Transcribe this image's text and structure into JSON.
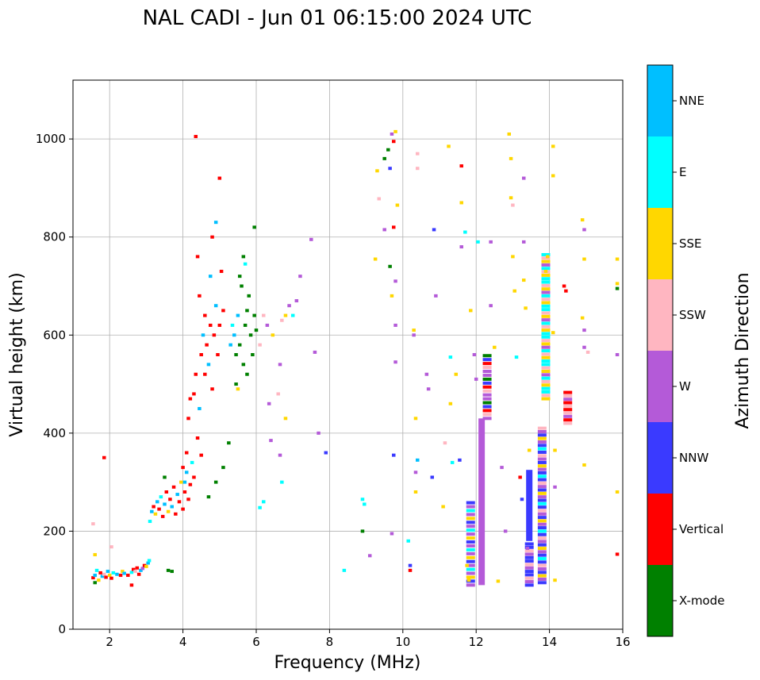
{
  "chart_data": {
    "type": "scatter",
    "title": "NAL CADI - Jun 01 06:15:00 2024 UTC",
    "xlabel": "Frequency (MHz)",
    "ylabel": "Virtual height (km)",
    "xlim": [
      1.0,
      16.0
    ],
    "ylim": [
      0,
      1120
    ],
    "xticks": [
      2,
      4,
      6,
      8,
      10,
      12,
      14,
      16
    ],
    "yticks": [
      0,
      200,
      400,
      600,
      800,
      1000
    ],
    "grid": true,
    "colorbar": {
      "label": "Azimuth Direction",
      "categories": [
        {
          "name": "X-mode",
          "color": "#008000"
        },
        {
          "name": "Vertical",
          "color": "#ff0000"
        },
        {
          "name": "NNW",
          "color": "#3a3aff"
        },
        {
          "name": "W",
          "color": "#b45ad8"
        },
        {
          "name": "SSW",
          "color": "#ffb6c1"
        },
        {
          "name": "SSE",
          "color": "#ffd700"
        },
        {
          "name": "E",
          "color": "#00ffff"
        },
        {
          "name": "NNE",
          "color": "#00bfff"
        }
      ]
    },
    "points": [
      [
        1.55,
        105,
        "Vertical"
      ],
      [
        1.6,
        110,
        "NNE"
      ],
      [
        1.6,
        95,
        "X-mode"
      ],
      [
        1.65,
        120,
        "E"
      ],
      [
        1.7,
        100,
        "SSE"
      ],
      [
        1.75,
        115,
        "Vertical"
      ],
      [
        1.8,
        108,
        "NNE"
      ],
      [
        1.85,
        112,
        "SSW"
      ],
      [
        1.9,
        106,
        "Vertical"
      ],
      [
        1.95,
        118,
        "NNE"
      ],
      [
        2.0,
        110,
        "SSE"
      ],
      [
        2.05,
        104,
        "Vertical"
      ],
      [
        2.1,
        115,
        "E"
      ],
      [
        2.2,
        112,
        "NNE"
      ],
      [
        2.3,
        110,
        "Vertical"
      ],
      [
        2.35,
        118,
        "SSE"
      ],
      [
        2.4,
        114,
        "NNE"
      ],
      [
        2.5,
        110,
        "Vertical"
      ],
      [
        2.6,
        116,
        "E"
      ],
      [
        2.65,
        122,
        "Vertical"
      ],
      [
        2.7,
        118,
        "SSW"
      ],
      [
        2.75,
        125,
        "Vertical"
      ],
      [
        2.8,
        112,
        "Vertical"
      ],
      [
        2.85,
        120,
        "NNE"
      ],
      [
        2.9,
        124,
        "W"
      ],
      [
        2.95,
        130,
        "Vertical"
      ],
      [
        3.0,
        128,
        "SSE"
      ],
      [
        3.05,
        135,
        "NNE"
      ],
      [
        3.08,
        140,
        "E"
      ],
      [
        1.55,
        215,
        "SSW"
      ],
      [
        1.6,
        152,
        "SSE"
      ],
      [
        1.85,
        350,
        "Vertical"
      ],
      [
        2.05,
        168,
        "SSW"
      ],
      [
        2.6,
        90,
        "Vertical"
      ],
      [
        3.1,
        220,
        "E"
      ],
      [
        3.15,
        240,
        "NNE"
      ],
      [
        3.2,
        250,
        "Vertical"
      ],
      [
        3.25,
        235,
        "SSE"
      ],
      [
        3.3,
        260,
        "NNE"
      ],
      [
        3.35,
        245,
        "Vertical"
      ],
      [
        3.4,
        270,
        "E"
      ],
      [
        3.45,
        230,
        "Vertical"
      ],
      [
        3.5,
        255,
        "NNE"
      ],
      [
        3.55,
        280,
        "Vertical"
      ],
      [
        3.6,
        240,
        "SSE"
      ],
      [
        3.65,
        265,
        "Vertical"
      ],
      [
        3.7,
        250,
        "NNE"
      ],
      [
        3.75,
        290,
        "Vertical"
      ],
      [
        3.8,
        235,
        "Vertical"
      ],
      [
        3.85,
        275,
        "NNE"
      ],
      [
        3.9,
        260,
        "Vertical"
      ],
      [
        3.95,
        300,
        "SSE"
      ],
      [
        4.0,
        245,
        "Vertical"
      ],
      [
        4.05,
        280,
        "Vertical"
      ],
      [
        4.1,
        320,
        "NNE"
      ],
      [
        4.15,
        265,
        "Vertical"
      ],
      [
        4.2,
        295,
        "Vertical"
      ],
      [
        4.25,
        340,
        "E"
      ],
      [
        4.3,
        310,
        "Vertical"
      ],
      [
        3.5,
        310,
        "X-mode"
      ],
      [
        3.6,
        120,
        "X-mode"
      ],
      [
        3.7,
        118,
        "X-mode"
      ],
      [
        4.0,
        330,
        "Vertical"
      ],
      [
        4.05,
        300,
        "NNE"
      ],
      [
        4.1,
        360,
        "Vertical"
      ],
      [
        4.15,
        430,
        "Vertical"
      ],
      [
        4.2,
        470,
        "Vertical"
      ],
      [
        4.3,
        480,
        "Vertical"
      ],
      [
        4.35,
        520,
        "Vertical"
      ],
      [
        4.4,
        390,
        "Vertical"
      ],
      [
        4.45,
        450,
        "NNE"
      ],
      [
        4.5,
        560,
        "Vertical"
      ],
      [
        4.5,
        355,
        "Vertical"
      ],
      [
        4.55,
        600,
        "NNE"
      ],
      [
        4.6,
        520,
        "Vertical"
      ],
      [
        4.65,
        580,
        "Vertical"
      ],
      [
        4.7,
        540,
        "NNE"
      ],
      [
        4.75,
        620,
        "Vertical"
      ],
      [
        4.8,
        490,
        "Vertical"
      ],
      [
        4.85,
        600,
        "Vertical"
      ],
      [
        4.9,
        660,
        "NNE"
      ],
      [
        4.95,
        560,
        "Vertical"
      ],
      [
        5.0,
        620,
        "Vertical"
      ],
      [
        4.35,
        1005,
        "Vertical"
      ],
      [
        4.4,
        760,
        "Vertical"
      ],
      [
        4.45,
        680,
        "Vertical"
      ],
      [
        4.6,
        640,
        "Vertical"
      ],
      [
        4.75,
        720,
        "NNE"
      ],
      [
        4.8,
        800,
        "Vertical"
      ],
      [
        4.9,
        830,
        "NNE"
      ],
      [
        5.0,
        920,
        "Vertical"
      ],
      [
        5.05,
        730,
        "Vertical"
      ],
      [
        5.1,
        650,
        "Vertical"
      ],
      [
        4.7,
        270,
        "X-mode"
      ],
      [
        4.9,
        300,
        "X-mode"
      ],
      [
        5.1,
        330,
        "X-mode"
      ],
      [
        5.25,
        380,
        "X-mode"
      ],
      [
        5.3,
        580,
        "NNE"
      ],
      [
        5.35,
        620,
        "E"
      ],
      [
        5.4,
        600,
        "NNE"
      ],
      [
        5.45,
        560,
        "X-mode"
      ],
      [
        5.5,
        640,
        "NNE"
      ],
      [
        5.55,
        580,
        "X-mode"
      ],
      [
        5.6,
        700,
        "X-mode"
      ],
      [
        5.65,
        540,
        "X-mode"
      ],
      [
        5.7,
        620,
        "X-mode"
      ],
      [
        5.75,
        520,
        "X-mode"
      ],
      [
        5.8,
        680,
        "X-mode"
      ],
      [
        5.85,
        600,
        "X-mode"
      ],
      [
        5.9,
        560,
        "X-mode"
      ],
      [
        5.95,
        640,
        "X-mode"
      ],
      [
        6.0,
        610,
        "X-mode"
      ],
      [
        5.45,
        500,
        "X-mode"
      ],
      [
        5.55,
        720,
        "X-mode"
      ],
      [
        5.65,
        760,
        "X-mode"
      ],
      [
        5.75,
        650,
        "X-mode"
      ],
      [
        5.95,
        820,
        "X-mode"
      ],
      [
        5.5,
        490,
        "SSE"
      ],
      [
        5.7,
        745,
        "E"
      ],
      [
        6.1,
        580,
        "SSW"
      ],
      [
        6.2,
        640,
        "SSW"
      ],
      [
        6.3,
        620,
        "W"
      ],
      [
        6.35,
        460,
        "W"
      ],
      [
        6.45,
        600,
        "SSE"
      ],
      [
        6.6,
        480,
        "SSW"
      ],
      [
        6.65,
        540,
        "W"
      ],
      [
        6.7,
        630,
        "SSW"
      ],
      [
        6.8,
        640,
        "SSE"
      ],
      [
        6.9,
        660,
        "W"
      ],
      [
        7.0,
        640,
        "E"
      ],
      [
        7.1,
        670,
        "W"
      ],
      [
        6.2,
        260,
        "E"
      ],
      [
        6.1,
        248,
        "E"
      ],
      [
        6.7,
        300,
        "E"
      ],
      [
        6.65,
        355,
        "W"
      ],
      [
        6.4,
        385,
        "W"
      ],
      [
        6.8,
        430,
        "SSE"
      ],
      [
        7.2,
        720,
        "W"
      ],
      [
        7.5,
        795,
        "W"
      ],
      [
        7.6,
        565,
        "W"
      ],
      [
        7.7,
        400,
        "W"
      ],
      [
        7.9,
        360,
        "NNW"
      ],
      [
        8.4,
        120,
        "E"
      ],
      [
        8.9,
        200,
        "X-mode"
      ],
      [
        8.9,
        265,
        "E"
      ],
      [
        8.95,
        255,
        "E"
      ],
      [
        9.1,
        150,
        "W"
      ],
      [
        9.3,
        935,
        "SSE"
      ],
      [
        9.25,
        755,
        "SSE"
      ],
      [
        9.35,
        878,
        "SSW"
      ],
      [
        9.5,
        960,
        "X-mode"
      ],
      [
        9.5,
        815,
        "W"
      ],
      [
        9.6,
        978,
        "X-mode"
      ],
      [
        9.65,
        740,
        "X-mode"
      ],
      [
        9.65,
        940,
        "NNW"
      ],
      [
        9.7,
        1010,
        "W"
      ],
      [
        9.75,
        995,
        "Vertical"
      ],
      [
        9.75,
        820,
        "Vertical"
      ],
      [
        9.7,
        680,
        "SSE"
      ],
      [
        9.75,
        355,
        "NNW"
      ],
      [
        9.7,
        195,
        "W"
      ],
      [
        9.8,
        1015,
        "SSE"
      ],
      [
        9.8,
        545,
        "W"
      ],
      [
        9.8,
        710,
        "W"
      ],
      [
        9.8,
        620,
        "W"
      ],
      [
        9.85,
        865,
        "SSE"
      ],
      [
        10.15,
        180,
        "E"
      ],
      [
        10.2,
        130,
        "NNW"
      ],
      [
        10.2,
        120,
        "Vertical"
      ],
      [
        10.3,
        610,
        "SSE"
      ],
      [
        10.3,
        600,
        "W"
      ],
      [
        10.35,
        430,
        "SSE"
      ],
      [
        10.4,
        345,
        "NNE"
      ],
      [
        10.35,
        320,
        "W"
      ],
      [
        10.35,
        280,
        "SSE"
      ],
      [
        10.4,
        940,
        "SSW"
      ],
      [
        10.4,
        970,
        "SSW"
      ],
      [
        10.65,
        520,
        "W"
      ],
      [
        10.7,
        490,
        "W"
      ],
      [
        10.8,
        310,
        "NNW"
      ],
      [
        10.85,
        815,
        "NNW"
      ],
      [
        10.9,
        680,
        "W"
      ],
      [
        11.1,
        250,
        "SSE"
      ],
      [
        11.15,
        380,
        "SSW"
      ],
      [
        11.25,
        985,
        "SSE"
      ],
      [
        11.3,
        555,
        "E"
      ],
      [
        11.3,
        460,
        "SSE"
      ],
      [
        11.35,
        340,
        "E"
      ],
      [
        11.45,
        520,
        "SSE"
      ],
      [
        11.55,
        345,
        "NNW"
      ],
      [
        11.6,
        945,
        "Vertical"
      ],
      [
        11.6,
        870,
        "SSE"
      ],
      [
        11.6,
        780,
        "W"
      ],
      [
        11.7,
        810,
        "E"
      ],
      [
        11.75,
        130,
        "SSE"
      ],
      [
        11.8,
        100,
        "SSE"
      ],
      [
        11.85,
        650,
        "SSE"
      ],
      [
        11.95,
        560,
        "W"
      ],
      [
        12.0,
        510,
        "W"
      ],
      [
        12.05,
        790,
        "E"
      ],
      [
        12.4,
        790,
        "W"
      ],
      [
        12.4,
        660,
        "W"
      ],
      [
        12.5,
        575,
        "SSE"
      ],
      [
        12.6,
        98,
        "SSE"
      ],
      [
        12.7,
        330,
        "W"
      ],
      [
        12.8,
        200,
        "W"
      ],
      [
        12.9,
        1010,
        "SSE"
      ],
      [
        12.95,
        960,
        "SSE"
      ],
      [
        12.95,
        880,
        "SSE"
      ],
      [
        13.0,
        865,
        "SSW"
      ],
      [
        13.0,
        760,
        "SSE"
      ],
      [
        13.05,
        690,
        "SSE"
      ],
      [
        13.1,
        555,
        "E"
      ],
      [
        13.2,
        310,
        "Vertical"
      ],
      [
        13.25,
        265,
        "NNW"
      ],
      [
        13.3,
        920,
        "W"
      ],
      [
        13.3,
        790,
        "W"
      ],
      [
        13.3,
        712,
        "SSE"
      ],
      [
        13.35,
        655,
        "SSE"
      ],
      [
        13.4,
        165,
        "W"
      ],
      [
        13.45,
        365,
        "SSE"
      ],
      [
        13.9,
        730,
        "SSE"
      ],
      [
        13.95,
        760,
        "SSE"
      ],
      [
        14.1,
        985,
        "SSE"
      ],
      [
        14.1,
        925,
        "SSE"
      ],
      [
        14.1,
        605,
        "SSE"
      ],
      [
        14.15,
        365,
        "SSE"
      ],
      [
        14.15,
        290,
        "W"
      ],
      [
        14.15,
        100,
        "SSE"
      ],
      [
        14.4,
        700,
        "Vertical"
      ],
      [
        14.45,
        690,
        "Vertical"
      ],
      [
        14.9,
        835,
        "SSE"
      ],
      [
        14.95,
        815,
        "W"
      ],
      [
        14.95,
        755,
        "SSE"
      ],
      [
        14.9,
        635,
        "SSE"
      ],
      [
        14.95,
        610,
        "W"
      ],
      [
        14.95,
        575,
        "W"
      ],
      [
        15.05,
        565,
        "SSW"
      ],
      [
        14.95,
        335,
        "SSE"
      ],
      [
        15.85,
        755,
        "SSE"
      ],
      [
        15.85,
        705,
        "SSE"
      ],
      [
        15.85,
        695,
        "X-mode"
      ],
      [
        15.85,
        560,
        "W"
      ],
      [
        15.85,
        280,
        "SSE"
      ],
      [
        15.85,
        153,
        "Vertical"
      ]
    ],
    "bars": [
      {
        "x": 12.15,
        "y0": 90,
        "y1": 430,
        "category": "W"
      },
      {
        "x": 13.45,
        "y0": 180,
        "y1": 325,
        "category": "NNW"
      }
    ],
    "stripes": [
      {
        "x": 12.3,
        "y0": 430,
        "y1": 565,
        "step": 8,
        "cats": [
          "W",
          "SSW",
          "Vertical",
          "NNW",
          "X-mode",
          "W"
        ]
      },
      {
        "x": 11.85,
        "y0": 90,
        "y1": 265,
        "step": 8,
        "cats": [
          "W",
          "NNW",
          "SSE",
          "W",
          "E"
        ]
      },
      {
        "x": 13.45,
        "y0": 90,
        "y1": 175,
        "step": 7,
        "cats": [
          "NNW",
          "W",
          "SSW",
          "NNW"
        ]
      },
      {
        "x": 13.8,
        "y0": 95,
        "y1": 410,
        "step": 7,
        "cats": [
          "NNW",
          "W",
          "SSE",
          "NNW",
          "W",
          "SSW",
          "NNW",
          "E"
        ]
      },
      {
        "x": 13.9,
        "y0": 470,
        "y1": 770,
        "step": 7,
        "cats": [
          "SSE",
          "SSW",
          "E",
          "E",
          "SSE",
          "SSW",
          "E",
          "W"
        ]
      },
      {
        "x": 14.5,
        "y0": 420,
        "y1": 485,
        "step": 7,
        "cats": [
          "SSW",
          "Vertical",
          "W",
          "SSW",
          "Vertical"
        ]
      }
    ]
  }
}
